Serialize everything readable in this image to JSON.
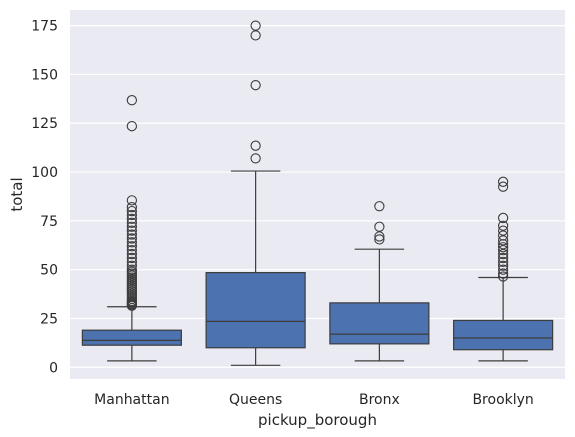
{
  "chart_data": {
    "type": "box",
    "xlabel": "pickup_borough",
    "ylabel": "total",
    "ylim": [
      -6,
      183
    ],
    "yticks": [
      0,
      25,
      50,
      75,
      100,
      125,
      150,
      175
    ],
    "grid": true,
    "colors": {
      "background": "#eaeaf2",
      "grid": "#ffffff",
      "box": "#4c72b0",
      "line": "#3d3d3d"
    },
    "categories": [
      "Manhattan",
      "Queens",
      "Bronx",
      "Brooklyn"
    ],
    "boxes": [
      {
        "category": "Manhattan",
        "whisker_low": 3.3,
        "q1": 11.3,
        "median": 13.8,
        "q3": 19.0,
        "whisker_high": 31.0,
        "outliers": [
          31.5,
          32,
          32.5,
          33,
          33.5,
          34,
          35,
          36,
          37,
          38,
          39,
          40,
          41,
          42,
          43,
          44,
          45,
          46,
          47,
          48,
          49,
          50,
          52,
          54,
          56,
          58,
          60,
          62,
          64,
          66,
          68,
          70,
          72,
          74,
          76,
          78,
          80,
          82,
          85.5,
          123.5,
          136.8
        ]
      },
      {
        "category": "Queens",
        "whisker_low": 1.0,
        "q1": 10.0,
        "median": 23.5,
        "q3": 48.5,
        "whisker_high": 100.5,
        "outliers": [
          107.0,
          113.5,
          144.5,
          170.0,
          175.0
        ]
      },
      {
        "category": "Bronx",
        "whisker_low": 3.3,
        "q1": 12.0,
        "median": 17.0,
        "q3": 33.0,
        "whisker_high": 60.5,
        "outliers": [
          65.5,
          67.0,
          72.0,
          82.5
        ]
      },
      {
        "category": "Brooklyn",
        "whisker_low": 3.3,
        "q1": 9.0,
        "median": 15.0,
        "q3": 24.0,
        "whisker_high": 46.0,
        "outliers": [
          46.5,
          48,
          50,
          52,
          54,
          56,
          58,
          60,
          61.5,
          63,
          65,
          67.5,
          70,
          72.5,
          76.5,
          92.5,
          95.0
        ]
      }
    ]
  }
}
